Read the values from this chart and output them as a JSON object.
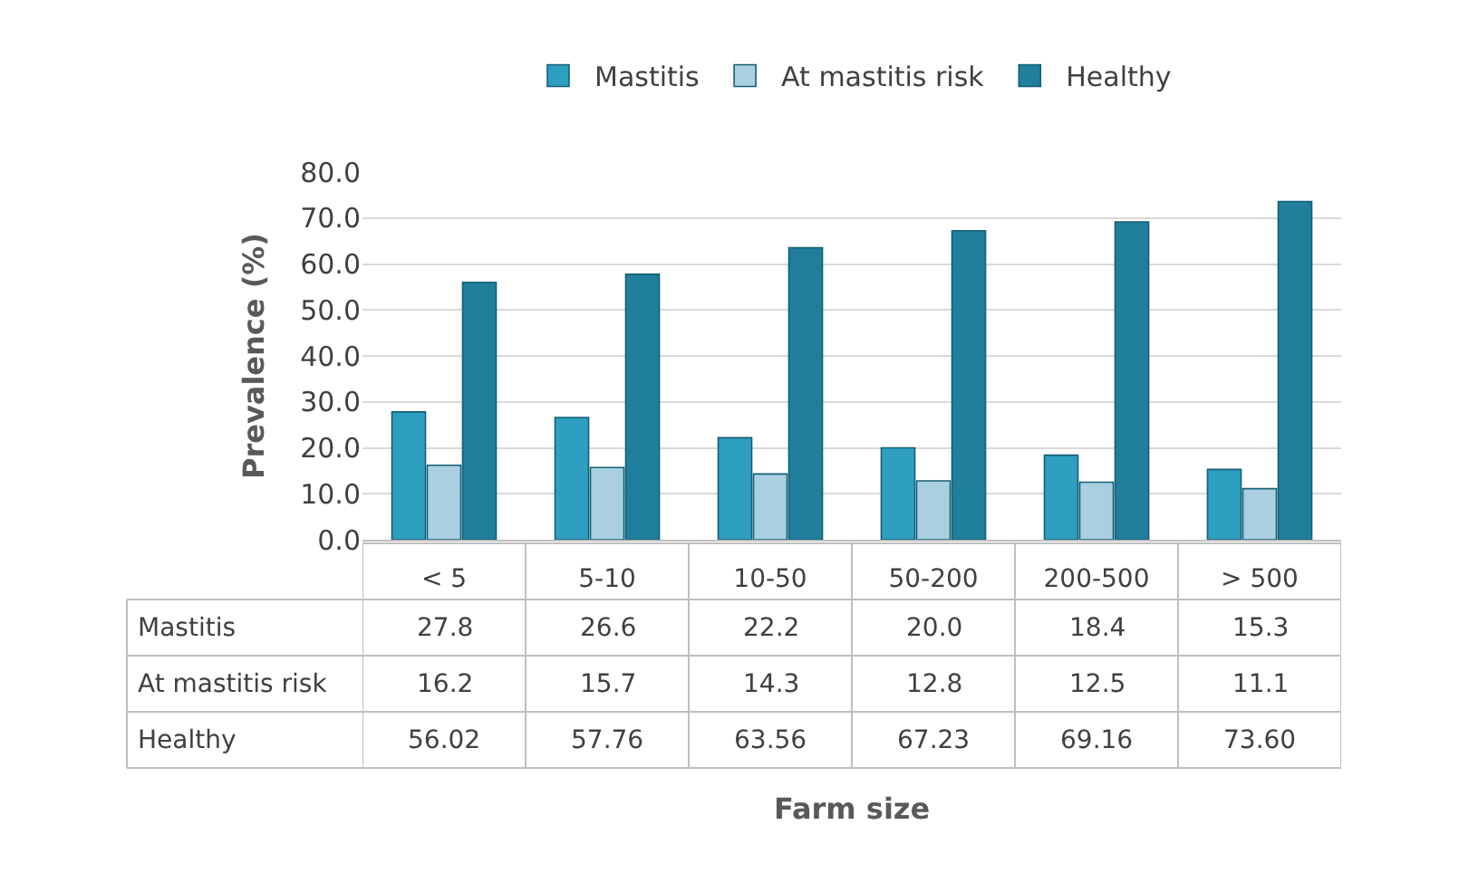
{
  "chart_data": {
    "type": "bar",
    "annotations": [
      "Farm size"
    ],
    "ylabel": "Prevalence (%)",
    "categories": [
      "< 5",
      "5-10",
      "10-50",
      "50-200",
      "200-500",
      "> 500"
    ],
    "series": [
      {
        "name": "Mastitis",
        "color": "#2e9fc0",
        "values": [
          27.8,
          26.6,
          22.2,
          20.0,
          18.4,
          15.3
        ],
        "value_labels": [
          "27.8",
          "26.6",
          "22.2",
          "20.0",
          "18.4",
          "15.3"
        ]
      },
      {
        "name": "At mastitis risk",
        "color": "#a9cfe0",
        "values": [
          16.2,
          15.7,
          14.3,
          12.8,
          12.5,
          11.1
        ],
        "value_labels": [
          "16.2",
          "15.7",
          "14.3",
          "12.8",
          "12.5",
          "11.1"
        ]
      },
      {
        "name": "Healthy",
        "color": "#1f7f9c",
        "values": [
          56.02,
          57.76,
          63.56,
          67.23,
          69.16,
          73.6
        ],
        "value_labels": [
          "56.02",
          "57.76",
          "63.56",
          "67.23",
          "69.16",
          "73.60"
        ]
      }
    ],
    "ylim": [
      0,
      80
    ],
    "yticks": [
      {
        "value": 0,
        "label": "0.0"
      },
      {
        "value": 10,
        "label": "10.0"
      },
      {
        "value": 20,
        "label": "20.0"
      },
      {
        "value": 30,
        "label": "30.0"
      },
      {
        "value": 40,
        "label": "40.0"
      },
      {
        "value": 50,
        "label": "50.0"
      },
      {
        "value": 60,
        "label": "60.0"
      },
      {
        "value": 70,
        "label": "70.0"
      },
      {
        "value": 80,
        "label": "80.0"
      }
    ],
    "grid": "y",
    "legend": "top"
  }
}
